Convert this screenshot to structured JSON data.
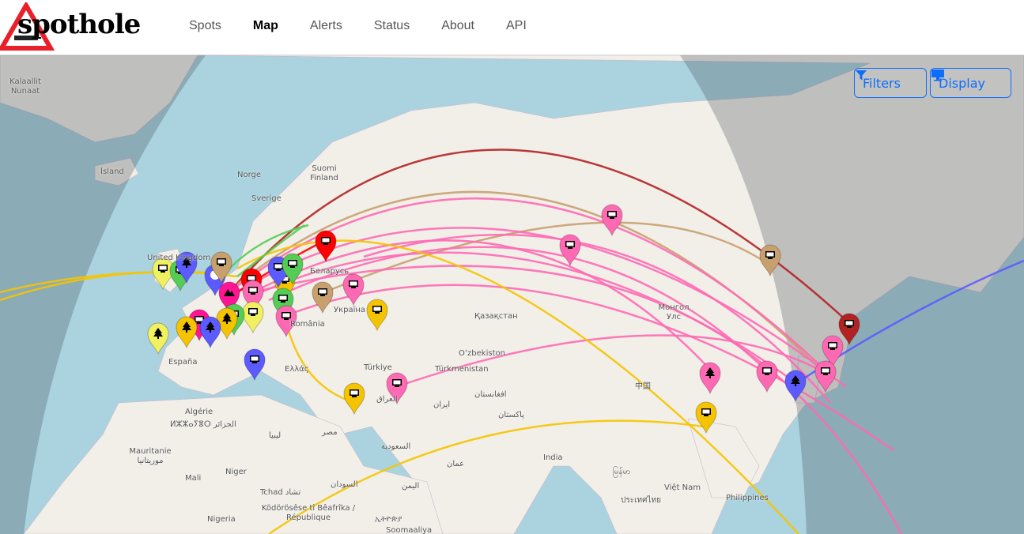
{
  "brand": {
    "name": "spothole"
  },
  "nav": {
    "items": [
      {
        "label": "Spots"
      },
      {
        "label": "Map",
        "active": true
      },
      {
        "label": "Alerts"
      },
      {
        "label": "Status"
      },
      {
        "label": "About"
      },
      {
        "label": "API"
      }
    ]
  },
  "controls": {
    "filters_label": "Filters",
    "display_label": "Display",
    "accent": "#0d6efd"
  },
  "map": {
    "colors": {
      "ocean": "#aad3df",
      "land": "#f2efe9",
      "night": "rgba(60,70,80,0.28)"
    },
    "labels": [
      "Kalaallit Nunaat",
      "Ísland",
      "Norge",
      "Sverige",
      "Suomi Finland",
      "Беларусь",
      "Україна",
      "România",
      "España",
      "Ελλάς",
      "Türkiye",
      "العراق",
      "ایران",
      "Қазақстан",
      "Oʻzbekiston",
      "Türkmenistan",
      "افغانستان",
      "پاکستان",
      "Монгол Улс",
      "中国",
      "India",
      "Algérie",
      "ⵍⵣⵣⴰⵢⴻⵔ الجزائر",
      "ليبيا",
      "مصر",
      "السعودية",
      "Mauritanie موريتانيا",
      "Mali",
      "Niger",
      "Tchad تشاد",
      "السودان",
      "اليمن",
      "عمان",
      "Nigeria",
      "Ködörösêse tî Bêafrîka / République",
      "ኢትዮጵያ",
      "Soomaaliya",
      "Việt Nam",
      "ประเทศไทย",
      "မြန်မာ",
      "Philippines",
      "United Kingdom"
    ],
    "marker_colors": {
      "pink": "#ff69b4",
      "yellow": "#f5c400",
      "lightyellow": "#f0f060",
      "tan": "#c8a06e",
      "red": "#ff0000",
      "darkred": "#b22222",
      "blue": "#5b5bff",
      "green": "#55cc55",
      "magenta": "#ff1493"
    },
    "marker_icons": [
      "monitor-icon",
      "tree-icon",
      "radiation-icon",
      "mountain-icon"
    ]
  }
}
